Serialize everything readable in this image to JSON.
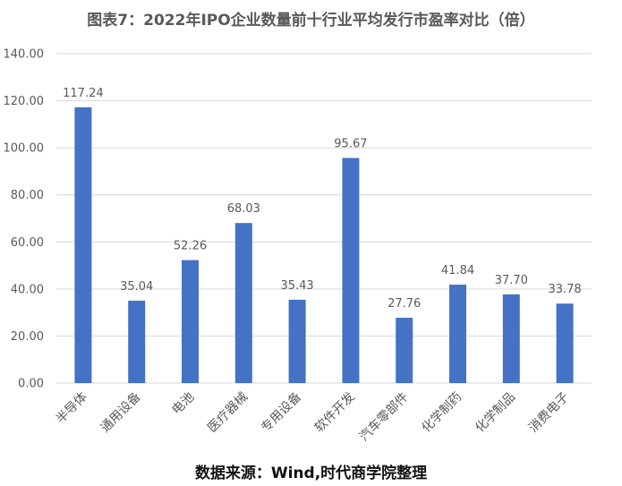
{
  "title": "图表7：2022年IPO企业数量前十行业平均发行市盈率对比（倍）",
  "source": "数据来源：Wind,时代商学院整理",
  "colors": {
    "bar": "#4472C4",
    "grid": "#D9D9D9",
    "text": "#595959"
  },
  "chart_data": {
    "type": "bar",
    "title": "图表7：2022年IPO企业数量前十行业平均发行市盈率对比（倍）",
    "categories": [
      "半导体",
      "通用设备",
      "电池",
      "医疗器械",
      "专用设备",
      "软件开发",
      "汽车零部件",
      "化学制药",
      "化学制品",
      "消费电子"
    ],
    "values": [
      117.24,
      35.04,
      52.26,
      68.03,
      35.43,
      95.67,
      27.76,
      41.84,
      37.7,
      33.78
    ],
    "value_labels": [
      "117.24",
      "35.04",
      "52.26",
      "68.03",
      "35.43",
      "95.67",
      "27.76",
      "41.84",
      "37.70",
      "33.78"
    ],
    "yticks": [
      "0.00",
      "20.00",
      "40.00",
      "60.00",
      "80.00",
      "100.00",
      "120.00",
      "140.00"
    ],
    "ylim": [
      0,
      140
    ],
    "xlabel": "",
    "ylabel": "",
    "grid": true,
    "legend": "none"
  }
}
